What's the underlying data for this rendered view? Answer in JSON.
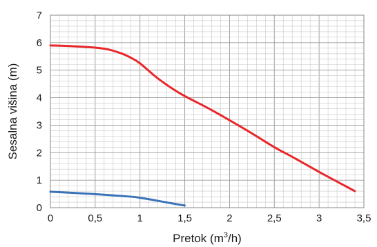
{
  "chart_data": {
    "type": "line",
    "xlabel": "Pretok (m",
    "xlabel_sup": "3",
    "xlabel_end": "/h)",
    "ylabel": "Sesalna višina (m)",
    "xlim": [
      0,
      3.5
    ],
    "ylim": [
      0,
      7
    ],
    "x_ticks": [
      "0",
      "0,5",
      "1",
      "1,5",
      "2",
      "2,5",
      "3",
      "3,5"
    ],
    "y_ticks": [
      "0",
      "1",
      "2",
      "3",
      "4",
      "5",
      "6",
      "7"
    ],
    "grid": true,
    "series": [
      {
        "color": "#e8272a",
        "x": [
          0,
          0.25,
          0.5,
          0.65,
          0.8,
          0.9,
          1.0,
          1.2,
          1.45,
          1.8,
          2.2,
          2.5,
          2.7,
          3.0,
          3.2,
          3.4
        ],
        "y": [
          5.9,
          5.87,
          5.82,
          5.75,
          5.6,
          5.45,
          5.25,
          4.7,
          4.15,
          3.55,
          2.8,
          2.2,
          1.85,
          1.3,
          0.95,
          0.6
        ]
      },
      {
        "color": "#3b73b9",
        "x": [
          0,
          0.3,
          0.6,
          0.9,
          1.0,
          1.2,
          1.35,
          1.5
        ],
        "y": [
          0.58,
          0.53,
          0.47,
          0.4,
          0.36,
          0.25,
          0.16,
          0.08
        ]
      }
    ]
  }
}
